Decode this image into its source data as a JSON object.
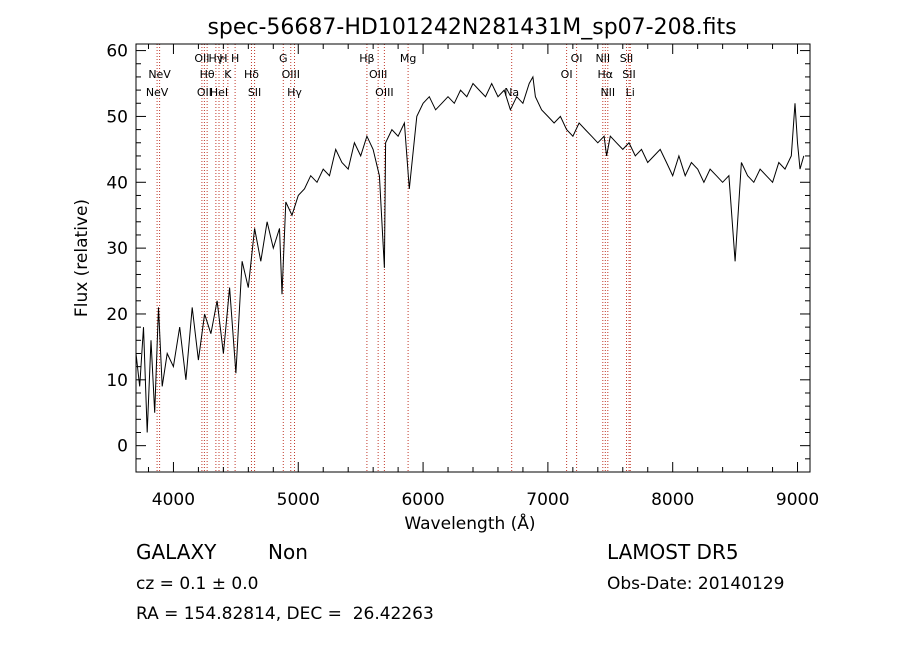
{
  "chart_data": {
    "type": "line",
    "title": "spec-56687-HD101242N281431M_sp07-208.fits",
    "xlabel": "Wavelength (Å)",
    "ylabel": "Flux (relative)",
    "xlim": [
      3700,
      9100
    ],
    "ylim": [
      -4,
      61
    ],
    "x_ticks": [
      4000,
      5000,
      6000,
      7000,
      8000,
      9000
    ],
    "y_ticks": [
      0,
      10,
      20,
      30,
      40,
      50,
      60
    ],
    "grid": false,
    "line_color": "#000000",
    "marker_color": "#c0392b",
    "series": [
      {
        "x": [
          3700,
          3730,
          3760,
          3790,
          3820,
          3850,
          3880,
          3910,
          3950,
          4000,
          4050,
          4100,
          4150,
          4200,
          4250,
          4300,
          4350,
          4400,
          4450,
          4500,
          4550,
          4600,
          4650,
          4700,
          4750,
          4800,
          4850,
          4870,
          4900,
          4950,
          5000,
          5050,
          5100,
          5150,
          5200,
          5250,
          5300,
          5350,
          5400,
          5450,
          5500,
          5550,
          5600,
          5650,
          5690,
          5700,
          5750,
          5800,
          5850,
          5890,
          5950,
          6000,
          6050,
          6100,
          6150,
          6200,
          6250,
          6300,
          6350,
          6400,
          6450,
          6500,
          6550,
          6600,
          6650,
          6700,
          6750,
          6800,
          6850,
          6880,
          6900,
          6950,
          7000,
          7050,
          7100,
          7150,
          7200,
          7250,
          7300,
          7350,
          7400,
          7450,
          7470,
          7500,
          7550,
          7600,
          7650,
          7700,
          7750,
          7800,
          7850,
          7900,
          7950,
          8000,
          8050,
          8100,
          8150,
          8200,
          8250,
          8300,
          8350,
          8400,
          8450,
          8500,
          8550,
          8600,
          8650,
          8700,
          8750,
          8800,
          8850,
          8900,
          8950,
          8980,
          9000,
          9020,
          9050
        ],
        "y": [
          14,
          9,
          18,
          2,
          16,
          5,
          21,
          9,
          14,
          12,
          18,
          10,
          21,
          13,
          20,
          17,
          22,
          14,
          24,
          11,
          28,
          24,
          33,
          28,
          34,
          30,
          33,
          23,
          37,
          35,
          38,
          39,
          41,
          40,
          42,
          41,
          45,
          43,
          42,
          46,
          44,
          47,
          45,
          41,
          27,
          46,
          48,
          47,
          49,
          39,
          50,
          52,
          53,
          51,
          52,
          53,
          52,
          54,
          53,
          55,
          54,
          53,
          55,
          53,
          54,
          51,
          53,
          52,
          55,
          56,
          53,
          51,
          50,
          49,
          50,
          48,
          47,
          49,
          48,
          47,
          46,
          47,
          44,
          47,
          46,
          45,
          46,
          44,
          45,
          43,
          44,
          45,
          43,
          41,
          44,
          41,
          43,
          42,
          40,
          42,
          41,
          40,
          41,
          28,
          43,
          41,
          40,
          42,
          41,
          40,
          43,
          42,
          44,
          52,
          46,
          42,
          44
        ]
      }
    ],
    "lines": [
      {
        "label": "NeV",
        "x": 3869,
        "row": 2
      },
      {
        "label": "NeV",
        "x": 3889,
        "row": 1
      },
      {
        "label": "OII",
        "x": 4228,
        "row": 0
      },
      {
        "label": "OII",
        "x": 4248,
        "row": 2
      },
      {
        "label": "Hγ",
        "x": 4340,
        "row": 0
      },
      {
        "label": "Hθ",
        "x": 4270,
        "row": 1
      },
      {
        "label": "H",
        "x": 4400,
        "row": 0
      },
      {
        "label": "HeI",
        "x": 4365,
        "row": 2
      },
      {
        "label": "K",
        "x": 4436,
        "row": 1
      },
      {
        "label": "H",
        "x": 4494,
        "row": 0
      },
      {
        "label": "Hδ",
        "x": 4625,
        "row": 1
      },
      {
        "label": "SII",
        "x": 4650,
        "row": 2
      },
      {
        "label": "G",
        "x": 4880,
        "row": 0
      },
      {
        "label": "OIII",
        "x": 4940,
        "row": 1
      },
      {
        "label": "Hγ",
        "x": 4970,
        "row": 2
      },
      {
        "label": "Hβ",
        "x": 5550,
        "row": 0
      },
      {
        "label": "OIII",
        "x": 5640,
        "row": 1
      },
      {
        "label": "OIII",
        "x": 5690,
        "row": 2
      },
      {
        "label": "Mg",
        "x": 5880,
        "row": 0
      },
      {
        "label": "Na",
        "x": 6710,
        "row": 2
      },
      {
        "label": "OI",
        "x": 7150,
        "row": 1
      },
      {
        "label": "OI",
        "x": 7230,
        "row": 0
      },
      {
        "label": "NII",
        "x": 7440,
        "row": 0
      },
      {
        "label": "Hα",
        "x": 7460,
        "row": 1
      },
      {
        "label": "NII",
        "x": 7480,
        "row": 2
      },
      {
        "label": "SII",
        "x": 7630,
        "row": 0
      },
      {
        "label": "SII",
        "x": 7650,
        "row": 1
      },
      {
        "label": "Li",
        "x": 7660,
        "row": 2
      }
    ]
  },
  "info": {
    "class": "GALAXY",
    "subclass": "Non",
    "cz": "cz = 0.1 ± 0.0",
    "coords": "RA = 154.82814, DEC =  26.42263",
    "survey": "LAMOST DR5",
    "obs_date": "Obs-Date: 20140129"
  }
}
